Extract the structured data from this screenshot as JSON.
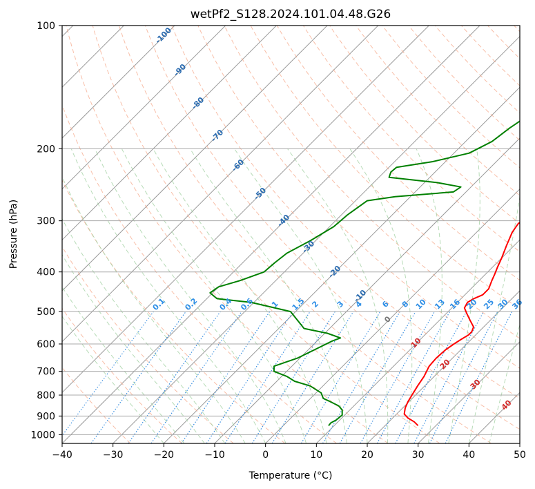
{
  "chart_data": {
    "type": "line",
    "title": "wetPf2_S128.2024.101.04.48.G26",
    "xlabel": "Temperature (°C)",
    "ylabel": "Pressure (hPa)",
    "xlim": [
      -40,
      50
    ],
    "ylim": [
      1050,
      100
    ],
    "y_scale": "log",
    "skew": "skew-T log-P",
    "x_ticks": [
      "−40",
      "−30",
      "−20",
      "−10",
      "0",
      "10",
      "20",
      "30",
      "40",
      "50"
    ],
    "y_ticks": [
      "100",
      "200",
      "300",
      "400",
      "500",
      "600",
      "700",
      "800",
      "900",
      "1000"
    ],
    "grid": true,
    "series": [
      {
        "color": "#ff0000",
        "x": [
          26.5,
          25.0,
          23.0,
          21.5,
          20.5,
          19.8,
          19.3,
          18.6,
          18.0,
          17.0,
          16.8,
          17.0,
          17.5,
          18.0,
          18.6,
          18.6,
          18.0,
          16.0,
          14.0,
          12.5,
          12.0,
          12.5,
          13.5,
          13.5,
          12.5,
          11.8,
          11.0,
          10.0,
          8.5,
          7.0,
          6.5,
          7.0,
          7.3,
          6.7,
          6.0,
          5.5,
          5.3,
          4.8,
          4.0,
          3.0,
          0.9,
          -1.0,
          -3.6,
          -5.8,
          -8.0,
          -11.3,
          -13.9,
          -15.8,
          -16.4,
          -14.8,
          -13.0
        ],
        "y": [
          950,
          930,
          910,
          890,
          860,
          830,
          800,
          760,
          720,
          680,
          650,
          620,
          600,
          585,
          570,
          560,
          545,
          525,
          505,
          490,
          475,
          465,
          455,
          440,
          420,
          405,
          390,
          370,
          345,
          320,
          305,
          295,
          280,
          265,
          245,
          225,
          210,
          195,
          185,
          175,
          165,
          155,
          145,
          140,
          135,
          125,
          118,
          110,
          105,
          102,
          100
        ]
      },
      {
        "color": "#008000",
        "x": [
          8.9,
          8.8,
          9.3,
          9.5,
          8.5,
          7.0,
          4.5,
          2.5,
          1.0,
          -2.5,
          -6.5,
          -9.0,
          -12.5,
          -13.5,
          -10.5,
          -8.5,
          -7.0,
          -6.0,
          -9.5,
          -15.0,
          -21.0,
          -30.5,
          -38.0,
          -40.5,
          -40.0,
          -37.0,
          -34.0,
          -33.7,
          -33.2,
          -31.0,
          -29.2,
          -28.8,
          -27.7,
          -23.0,
          -12.5,
          -12.0,
          -17.5,
          -28.0,
          -28.7,
          -28.5,
          -22.5,
          -17.0,
          -14.8,
          -14.0,
          -12.7,
          -12.5,
          -12.0,
          -11.5,
          -10.5,
          -9.8,
          -8.5
        ],
        "y": [
          950,
          935,
          920,
          895,
          870,
          850,
          830,
          815,
          790,
          760,
          740,
          720,
          700,
          680,
          650,
          615,
          590,
          580,
          565,
          550,
          500,
          475,
          465,
          450,
          435,
          420,
          400,
          380,
          360,
          335,
          310,
          290,
          268,
          262,
          255,
          248,
          242,
          235,
          228,
          222,
          215,
          205,
          192,
          178,
          165,
          152,
          140,
          128,
          118,
          108,
          100
        ]
      }
    ],
    "dry_adiabat_labels": [
      "-100",
      "-90",
      "-80",
      "-70",
      "-60",
      "-50",
      "-40",
      "-30",
      "-20",
      "-10",
      "0",
      "10",
      "20",
      "30",
      "40"
    ],
    "mixing_ratio_labels": [
      "0.1",
      "0.2",
      "0.4",
      "0.6",
      "1",
      "1.5",
      "2",
      "3",
      "4",
      "6",
      "8",
      "10",
      "13",
      "16",
      "20",
      "25",
      "30",
      "36"
    ]
  }
}
